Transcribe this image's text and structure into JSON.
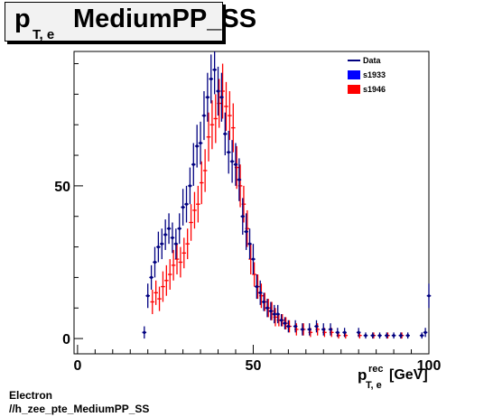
{
  "title": {
    "main": "p",
    "sub": "T, e",
    "rest": "MediumPP_SS"
  },
  "footer": {
    "line1": "Electron",
    "line2": "//h_zee_pte_MediumPP_SS"
  },
  "chart_data": {
    "type": "scatter",
    "title": "p_{T, e} MediumPP_SS",
    "xlabel": "p_{T, e}^{rec} [GeV]",
    "xlabel_parts": {
      "main": "p",
      "sup": "rec",
      "sub": "T, e",
      "unit": "[GeV]"
    },
    "ylabel": "",
    "xlim": [
      -1,
      100
    ],
    "ylim": [
      -5,
      94
    ],
    "x_ticks": [
      "0",
      "50",
      "100"
    ],
    "y_ticks": [
      "0",
      "50"
    ],
    "legend_position": "top-right",
    "legend": [
      {
        "label": "Data",
        "color": "#000080",
        "style": "line"
      },
      {
        "label": "s1933",
        "color": "#0000ff",
        "style": "box"
      },
      {
        "label": "s1946",
        "color": "#ff0000",
        "style": "box"
      }
    ],
    "series": [
      {
        "name": "s1946",
        "color": "#ff0000",
        "offset": 0.3,
        "points": [
          [
            21,
            12,
            4
          ],
          [
            22,
            15,
            4
          ],
          [
            23,
            13,
            4
          ],
          [
            24,
            17,
            5
          ],
          [
            25,
            19,
            5
          ],
          [
            26,
            21,
            5
          ],
          [
            27,
            24,
            5
          ],
          [
            28,
            26,
            5
          ],
          [
            29,
            25,
            5
          ],
          [
            30,
            28,
            5
          ],
          [
            31,
            31,
            5
          ],
          [
            32,
            38,
            6
          ],
          [
            33,
            42,
            6
          ],
          [
            34,
            44,
            6
          ],
          [
            35,
            51,
            7
          ],
          [
            36,
            55,
            7
          ],
          [
            37,
            66,
            8
          ],
          [
            38,
            70,
            8
          ],
          [
            39,
            72,
            8
          ],
          [
            40,
            77,
            8
          ],
          [
            41,
            81,
            9
          ],
          [
            42,
            76,
            8
          ],
          [
            43,
            73,
            8
          ],
          [
            44,
            69,
            8
          ],
          [
            45,
            56,
            7
          ],
          [
            46,
            50,
            7
          ],
          [
            47,
            44,
            6
          ],
          [
            48,
            36,
            6
          ],
          [
            49,
            26,
            5
          ],
          [
            50,
            21,
            4
          ],
          [
            51,
            17,
            4
          ],
          [
            52,
            14,
            4
          ],
          [
            53,
            12,
            3
          ],
          [
            54,
            10,
            3
          ],
          [
            55,
            9,
            3
          ],
          [
            56,
            7,
            3
          ],
          [
            57,
            6,
            2
          ],
          [
            58,
            6,
            2
          ],
          [
            59,
            5,
            2
          ],
          [
            60,
            4,
            2
          ],
          [
            62,
            3,
            2
          ],
          [
            64,
            3,
            2
          ],
          [
            66,
            2,
            1.5
          ],
          [
            68,
            3,
            2
          ],
          [
            70,
            2,
            1.5
          ],
          [
            72,
            2,
            1.5
          ],
          [
            74,
            1,
            1
          ],
          [
            76,
            1,
            1
          ],
          [
            80,
            1,
            1
          ],
          [
            84,
            1,
            1
          ],
          [
            88,
            1,
            1
          ],
          [
            92,
            1,
            1
          ]
        ]
      },
      {
        "name": "Data",
        "color": "#000080",
        "offset": 0,
        "points": [
          [
            19,
            2,
            2
          ],
          [
            20,
            14,
            4
          ],
          [
            21,
            20,
            4
          ],
          [
            22,
            25,
            5
          ],
          [
            23,
            30,
            5
          ],
          [
            24,
            31,
            5
          ],
          [
            25,
            34,
            5
          ],
          [
            26,
            36,
            5
          ],
          [
            27,
            33,
            5
          ],
          [
            28,
            31,
            5
          ],
          [
            29,
            36,
            5
          ],
          [
            30,
            43,
            6
          ],
          [
            31,
            44,
            6
          ],
          [
            32,
            50,
            6
          ],
          [
            33,
            57,
            7
          ],
          [
            34,
            63,
            7
          ],
          [
            35,
            64,
            7
          ],
          [
            36,
            73,
            8
          ],
          [
            37,
            79,
            8
          ],
          [
            38,
            85,
            8
          ],
          [
            39,
            88,
            8
          ],
          [
            40,
            81,
            8
          ],
          [
            41,
            79,
            8
          ],
          [
            42,
            67,
            7
          ],
          [
            43,
            61,
            7
          ],
          [
            44,
            58,
            7
          ],
          [
            45,
            57,
            7
          ],
          [
            46,
            52,
            7
          ],
          [
            47,
            40,
            6
          ],
          [
            48,
            35,
            6
          ],
          [
            49,
            31,
            5
          ],
          [
            50,
            26,
            5
          ],
          [
            51,
            17,
            4
          ],
          [
            52,
            15,
            4
          ],
          [
            53,
            12,
            3
          ],
          [
            54,
            10,
            3
          ],
          [
            55,
            9,
            3
          ],
          [
            56,
            8,
            3
          ],
          [
            57,
            8,
            3
          ],
          [
            58,
            6,
            2
          ],
          [
            59,
            5,
            2
          ],
          [
            60,
            4,
            2
          ],
          [
            62,
            4,
            2
          ],
          [
            64,
            3,
            2
          ],
          [
            66,
            3,
            2
          ],
          [
            68,
            4,
            2
          ],
          [
            70,
            3,
            2
          ],
          [
            72,
            3,
            2
          ],
          [
            74,
            2,
            1.5
          ],
          [
            76,
            2,
            1.5
          ],
          [
            80,
            2,
            1.5
          ],
          [
            82,
            1,
            1
          ],
          [
            84,
            1,
            1
          ],
          [
            86,
            1,
            1
          ],
          [
            88,
            1,
            1
          ],
          [
            90,
            1,
            1
          ],
          [
            92,
            1,
            1
          ],
          [
            94,
            1,
            1
          ],
          [
            98,
            1,
            1
          ],
          [
            99,
            2,
            1.5
          ],
          [
            100,
            14,
            4
          ]
        ]
      }
    ]
  }
}
